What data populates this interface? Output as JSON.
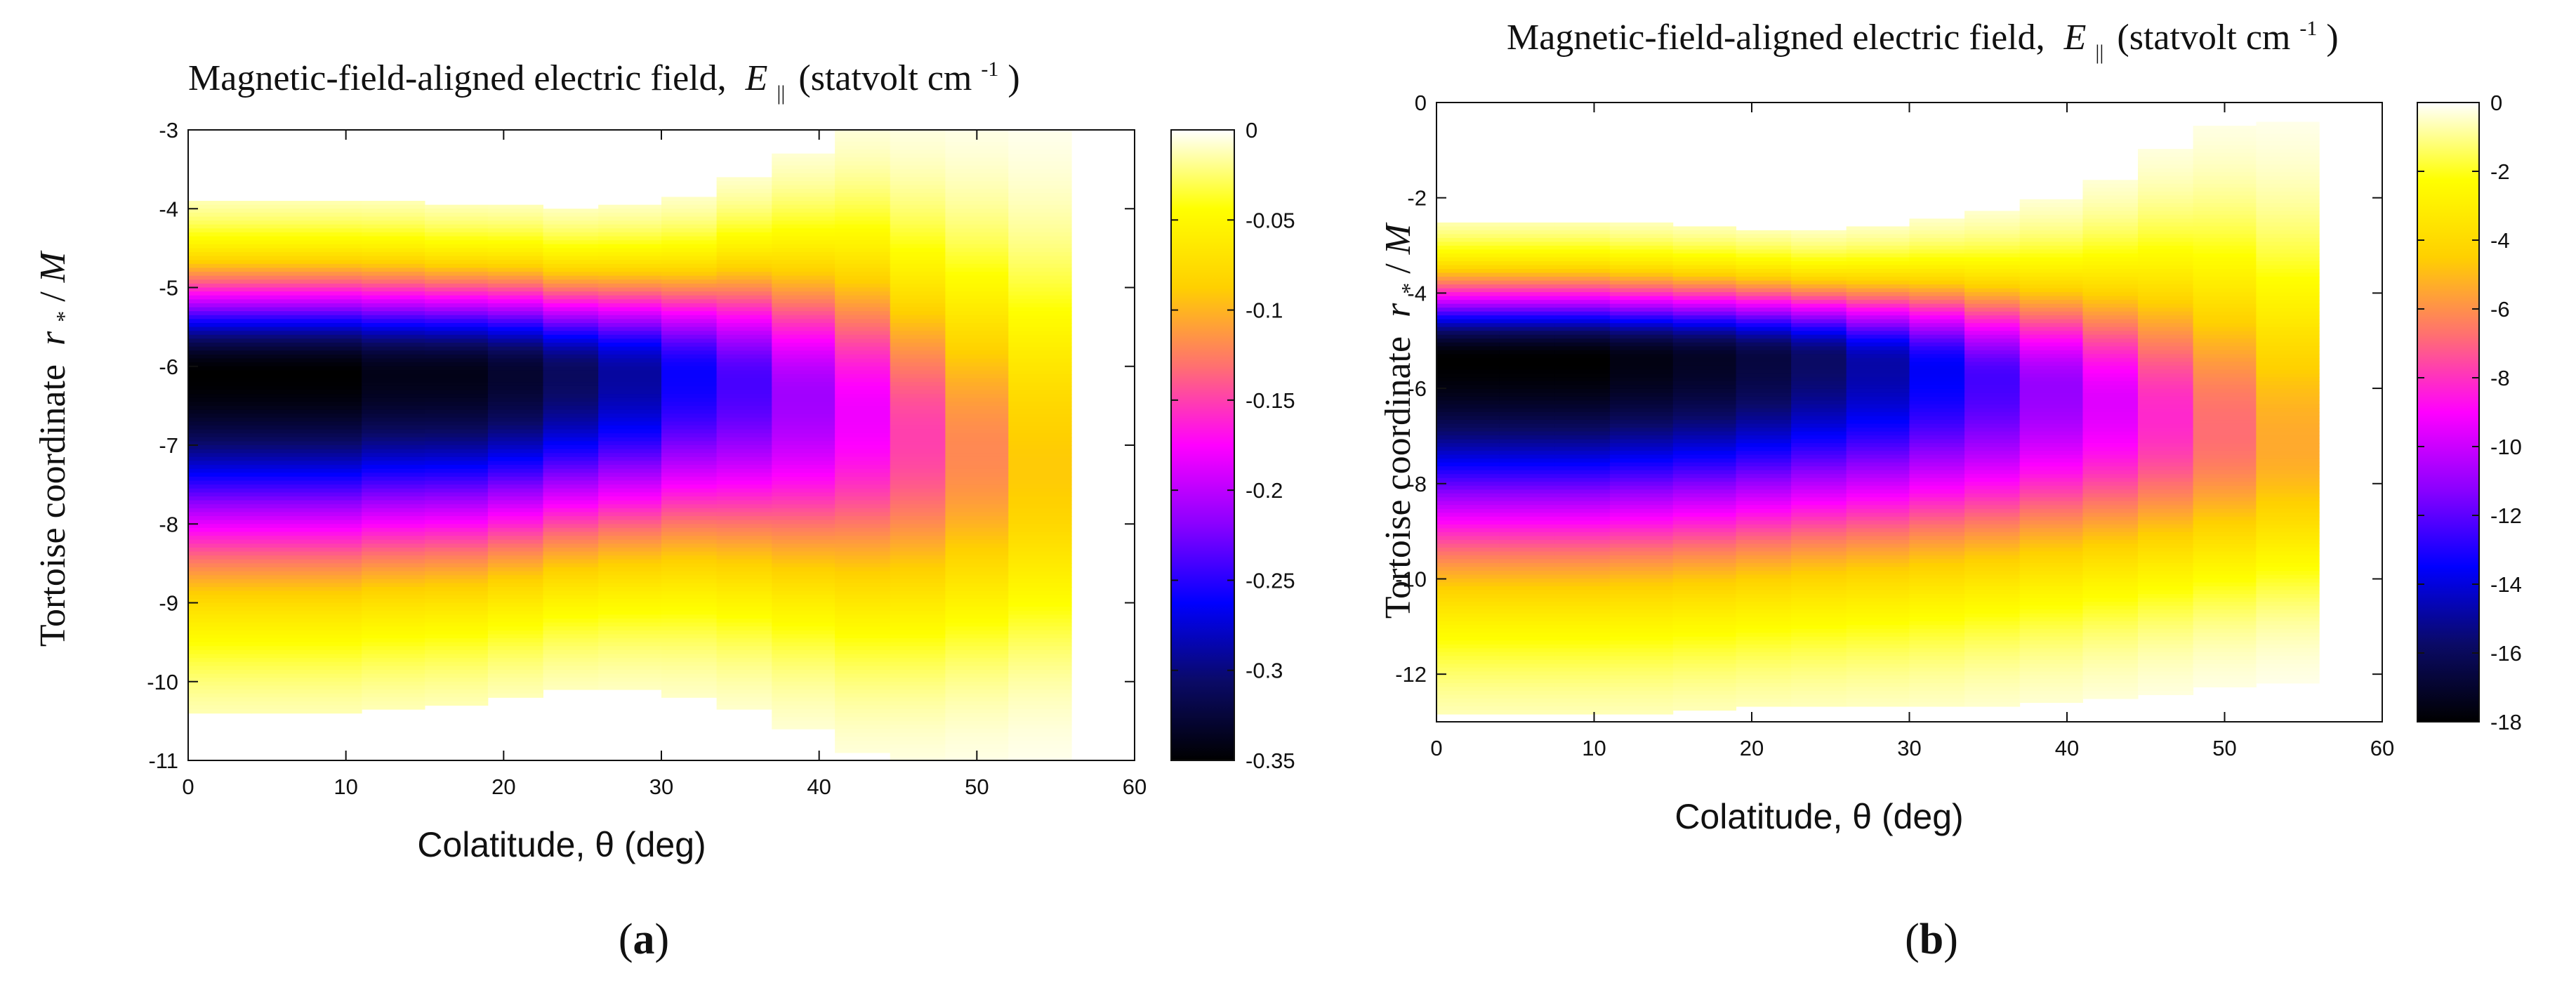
{
  "colors": {
    "colormap": [
      "#000000",
      "#0a0a66",
      "#0000ff",
      "#8b00ff",
      "#ff00ff",
      "#ff7070",
      "#ffd000",
      "#ffff00",
      "#ffffff"
    ]
  },
  "chart_data": [
    {
      "type": "heatmap",
      "panel_label": "a",
      "caption_open": "(",
      "caption_close": ")",
      "title": "Magnetic-field-aligned electric field,",
      "title_symbol": "E",
      "title_subscript": "||",
      "title_units": "(statvolt cm",
      "title_units_exp": "-1",
      "title_units_close": ")",
      "xlabel": "Colatitude, θ (deg)",
      "ylabel": "Tortoise coordinate",
      "ylabel_var": "r",
      "ylabel_var_sub": "*",
      "ylabel_tail": " / ",
      "ylabel_unit": "M",
      "xlim": [
        0,
        60
      ],
      "ylim": [
        -11,
        -3
      ],
      "x_ticks": [
        "0",
        "10",
        "20",
        "30",
        "40",
        "50",
        "60"
      ],
      "y_ticks": [
        "-3",
        "-4",
        "-5",
        "-6",
        "-7",
        "-8",
        "-9",
        "-10",
        "-11"
      ],
      "colorbar_range": [
        -0.35,
        0
      ],
      "colorbar_ticks": [
        "0",
        "-0.05",
        "-0.1",
        "-0.15",
        "-0.2",
        "-0.25",
        "-0.3",
        "-0.35"
      ],
      "columns": [
        {
          "x0": 0,
          "x1": 4,
          "top": -3.9,
          "bottom": -10.4,
          "center": -6.1,
          "peak": -0.35
        },
        {
          "x0": 4,
          "x1": 7.5,
          "top": -3.9,
          "bottom": -10.4,
          "center": -6.1,
          "peak": -0.35
        },
        {
          "x0": 7.5,
          "x1": 11,
          "top": -3.9,
          "bottom": -10.4,
          "center": -6.1,
          "peak": -0.35
        },
        {
          "x0": 11,
          "x1": 15,
          "top": -3.9,
          "bottom": -10.35,
          "center": -6.1,
          "peak": -0.34
        },
        {
          "x0": 15,
          "x1": 19,
          "top": -3.95,
          "bottom": -10.3,
          "center": -6.1,
          "peak": -0.34
        },
        {
          "x0": 19,
          "x1": 22.5,
          "top": -3.95,
          "bottom": -10.2,
          "center": -6.1,
          "peak": -0.33
        },
        {
          "x0": 22.5,
          "x1": 26,
          "top": -4.0,
          "bottom": -10.1,
          "center": -6.1,
          "peak": -0.31
        },
        {
          "x0": 26,
          "x1": 30,
          "top": -3.95,
          "bottom": -10.1,
          "center": -6.1,
          "peak": -0.29
        },
        {
          "x0": 30,
          "x1": 33.5,
          "top": -3.85,
          "bottom": -10.2,
          "center": -6.1,
          "peak": -0.26
        },
        {
          "x0": 33.5,
          "x1": 37,
          "top": -3.6,
          "bottom": -10.35,
          "center": -6.2,
          "peak": -0.24
        },
        {
          "x0": 37,
          "x1": 41,
          "top": -3.3,
          "bottom": -10.6,
          "center": -6.4,
          "peak": -0.21
        },
        {
          "x0": 41,
          "x1": 44.5,
          "top": -3.0,
          "bottom": -10.9,
          "center": -6.6,
          "peak": -0.18
        },
        {
          "x0": 44.5,
          "x1": 48,
          "top": -3.0,
          "bottom": -11.0,
          "center": -6.9,
          "peak": -0.15
        },
        {
          "x0": 48,
          "x1": 52,
          "top": -3.0,
          "bottom": -11.0,
          "center": -7.1,
          "peak": -0.12
        },
        {
          "x0": 52,
          "x1": 56,
          "top": -3.0,
          "bottom": -11.0,
          "center": -7.3,
          "peak": -0.09
        }
      ]
    },
    {
      "type": "heatmap",
      "panel_label": "b",
      "caption_open": "(",
      "caption_close": ")",
      "title": "Magnetic-field-aligned electric field,",
      "title_symbol": "E",
      "title_subscript": "||",
      "title_units": "(statvolt cm",
      "title_units_exp": "-1",
      "title_units_close": ")",
      "xlabel": "Colatitude, θ (deg)",
      "ylabel": "Tortoise coordinate",
      "ylabel_var": "r",
      "ylabel_var_sub": "*",
      "ylabel_tail": " / ",
      "ylabel_unit": "M",
      "xlim": [
        0,
        60
      ],
      "ylim": [
        -13,
        0
      ],
      "x_ticks": [
        "0",
        "10",
        "20",
        "30",
        "40",
        "50",
        "60"
      ],
      "y_ticks": [
        "0",
        "-2",
        "-4",
        "-6",
        "-8",
        "-10",
        "-12"
      ],
      "colorbar_range": [
        -18,
        0
      ],
      "colorbar_ticks": [
        "0",
        "-2",
        "-4",
        "-6",
        "-8",
        "-10",
        "-12",
        "-14",
        "-16",
        "-18"
      ],
      "columns": [
        {
          "x0": 0,
          "x1": 4,
          "top": -2.5,
          "bottom": -12.8,
          "center": -5.4,
          "peak": -18
        },
        {
          "x0": 4,
          "x1": 7.5,
          "top": -2.5,
          "bottom": -12.8,
          "center": -5.4,
          "peak": -18
        },
        {
          "x0": 7.5,
          "x1": 11,
          "top": -2.5,
          "bottom": -12.8,
          "center": -5.4,
          "peak": -18
        },
        {
          "x0": 11,
          "x1": 15,
          "top": -2.55,
          "bottom": -12.8,
          "center": -5.4,
          "peak": -17.6
        },
        {
          "x0": 15,
          "x1": 19,
          "top": -2.6,
          "bottom": -12.75,
          "center": -5.4,
          "peak": -17.2
        },
        {
          "x0": 19,
          "x1": 22.5,
          "top": -2.65,
          "bottom": -12.7,
          "center": -5.4,
          "peak": -16.6
        },
        {
          "x0": 22.5,
          "x1": 26,
          "top": -2.7,
          "bottom": -12.7,
          "center": -5.4,
          "peak": -15.8
        },
        {
          "x0": 26,
          "x1": 30,
          "top": -2.6,
          "bottom": -12.7,
          "center": -5.5,
          "peak": -14.8
        },
        {
          "x0": 30,
          "x1": 33.5,
          "top": -2.45,
          "bottom": -12.7,
          "center": -5.6,
          "peak": -13.6
        },
        {
          "x0": 33.5,
          "x1": 37,
          "top": -2.3,
          "bottom": -12.65,
          "center": -5.8,
          "peak": -12.4
        },
        {
          "x0": 37,
          "x1": 41,
          "top": -2.05,
          "bottom": -12.6,
          "center": -6.0,
          "peak": -11.0
        },
        {
          "x0": 41,
          "x1": 44.5,
          "top": -1.6,
          "bottom": -12.5,
          "center": -6.3,
          "peak": -9.6
        },
        {
          "x0": 44.5,
          "x1": 48,
          "top": -1.0,
          "bottom": -12.4,
          "center": -6.6,
          "peak": -8.2
        },
        {
          "x0": 48,
          "x1": 52,
          "top": -0.5,
          "bottom": -12.3,
          "center": -6.9,
          "peak": -6.8
        },
        {
          "x0": 52,
          "x1": 56,
          "top": -0.4,
          "bottom": -12.2,
          "center": -7.2,
          "peak": -5.4
        }
      ]
    }
  ]
}
